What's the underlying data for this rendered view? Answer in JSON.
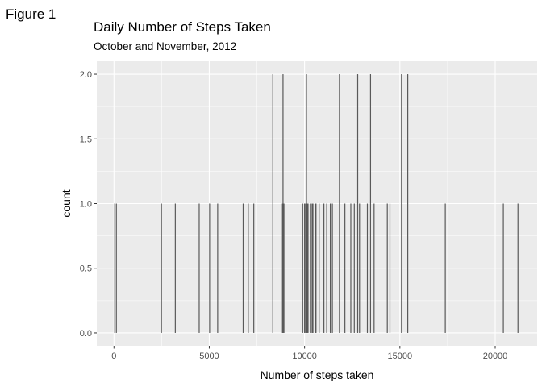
{
  "figure_label": "Figure 1",
  "chart_data": {
    "type": "bar",
    "title": "Daily Number of Steps Taken",
    "subtitle": "October and November, 2012",
    "xlabel": "Number of steps taken",
    "ylabel": "count",
    "xlim": [
      -900,
      22200
    ],
    "ylim": [
      -0.1,
      2.1
    ],
    "x_ticks": [
      0,
      5000,
      10000,
      15000,
      20000
    ],
    "y_ticks": [
      0.0,
      0.5,
      1.0,
      1.5,
      2.0
    ],
    "y_tick_labels": [
      "0.0",
      "0.5",
      "1.0",
      "1.5",
      "2.0"
    ],
    "grid": true,
    "bar_color": "#595959",
    "panel_color": "#ebebeb",
    "grid_color": "#ffffff",
    "bin_width": 30,
    "bins": [
      {
        "x": 41,
        "count": 1
      },
      {
        "x": 126,
        "count": 1
      },
      {
        "x": 2492,
        "count": 1
      },
      {
        "x": 3219,
        "count": 1
      },
      {
        "x": 4472,
        "count": 1
      },
      {
        "x": 5018,
        "count": 1
      },
      {
        "x": 5441,
        "count": 1
      },
      {
        "x": 6778,
        "count": 1
      },
      {
        "x": 7047,
        "count": 1
      },
      {
        "x": 7336,
        "count": 1
      },
      {
        "x": 8334,
        "count": 2
      },
      {
        "x": 8841,
        "count": 1
      },
      {
        "x": 8870,
        "count": 2
      },
      {
        "x": 8918,
        "count": 1
      },
      {
        "x": 9900,
        "count": 1
      },
      {
        "x": 10000,
        "count": 1
      },
      {
        "x": 10056,
        "count": 1
      },
      {
        "x": 10100,
        "count": 2
      },
      {
        "x": 10139,
        "count": 1
      },
      {
        "x": 10183,
        "count": 1
      },
      {
        "x": 10304,
        "count": 1
      },
      {
        "x": 10395,
        "count": 1
      },
      {
        "x": 10439,
        "count": 1
      },
      {
        "x": 10571,
        "count": 1
      },
      {
        "x": 10600,
        "count": 1
      },
      {
        "x": 10765,
        "count": 1
      },
      {
        "x": 11015,
        "count": 1
      },
      {
        "x": 11162,
        "count": 1
      },
      {
        "x": 11352,
        "count": 1
      },
      {
        "x": 11458,
        "count": 1
      },
      {
        "x": 11829,
        "count": 2
      },
      {
        "x": 12116,
        "count": 1
      },
      {
        "x": 12426,
        "count": 1
      },
      {
        "x": 12608,
        "count": 1
      },
      {
        "x": 12787,
        "count": 2
      },
      {
        "x": 12883,
        "count": 1
      },
      {
        "x": 13294,
        "count": 1
      },
      {
        "x": 13460,
        "count": 2
      },
      {
        "x": 13646,
        "count": 1
      },
      {
        "x": 14339,
        "count": 1
      },
      {
        "x": 14478,
        "count": 1
      },
      {
        "x": 15084,
        "count": 2
      },
      {
        "x": 15110,
        "count": 1
      },
      {
        "x": 15414,
        "count": 2
      },
      {
        "x": 17382,
        "count": 1
      },
      {
        "x": 20427,
        "count": 1
      },
      {
        "x": 21194,
        "count": 1
      }
    ]
  }
}
